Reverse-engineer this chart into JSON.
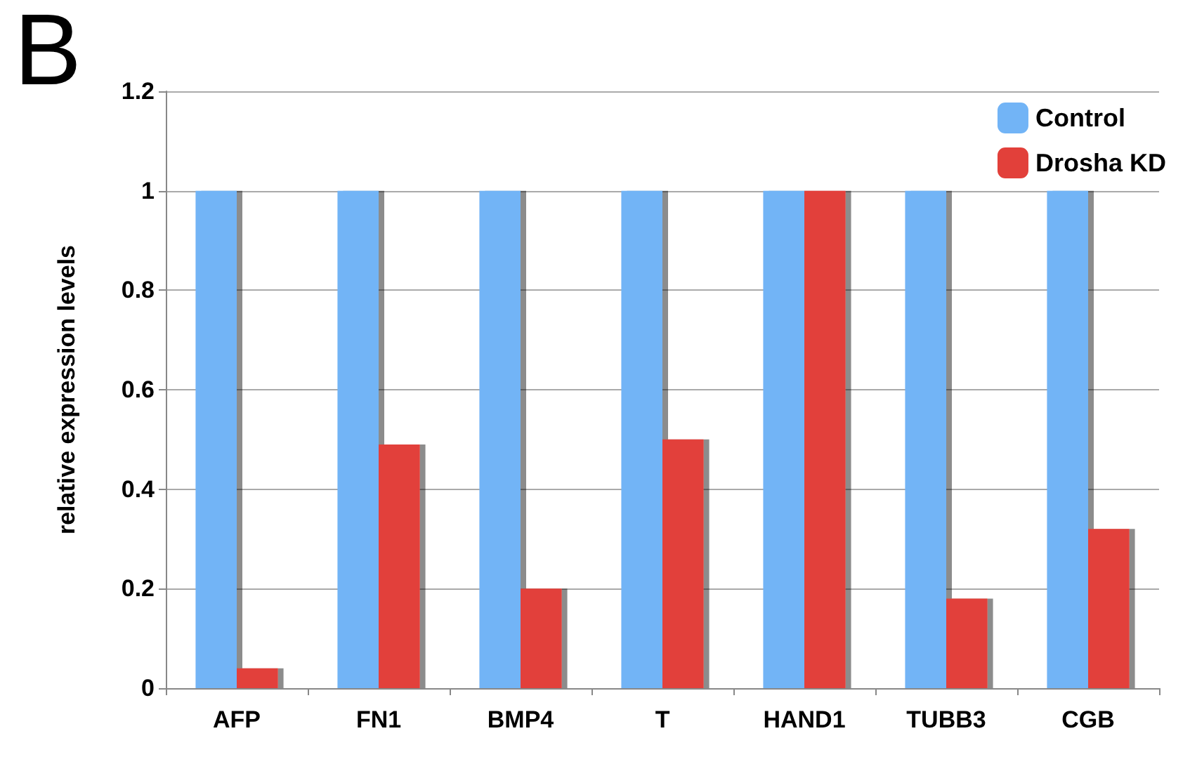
{
  "chart_data": {
    "type": "bar",
    "ylabel": "relative expression levels",
    "annotations": [
      "B"
    ],
    "categories": [
      "AFP",
      "FN1",
      "BMP4",
      "T",
      "HAND1",
      "TUBB3",
      "CGB"
    ],
    "series": [
      {
        "name": "Control",
        "color": "#72b4f6",
        "values": [
          1,
          1,
          1,
          1,
          1,
          1,
          1
        ]
      },
      {
        "name": "Drosha KD",
        "color": "#e2403a",
        "values": [
          0.04,
          0.49,
          0.2,
          0.5,
          1,
          0.18,
          0.32
        ]
      }
    ],
    "ylim": [
      0,
      1.2
    ],
    "yticks": [
      0,
      0.2,
      0.4,
      0.6,
      0.8,
      1,
      1.2
    ],
    "grid": "y",
    "legend": "top right"
  }
}
